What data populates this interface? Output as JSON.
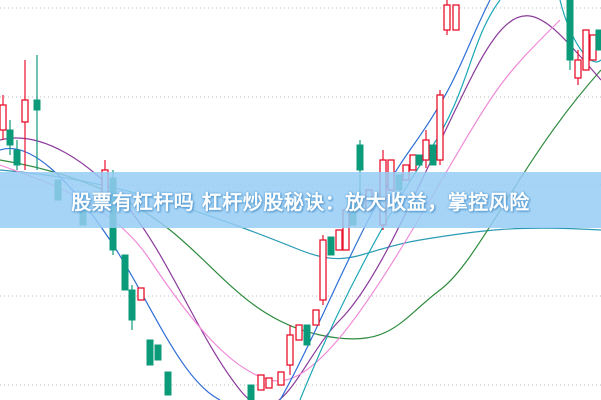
{
  "banner": {
    "title": "股票有杠杆吗 杠杆炒股秘诀：放大收益，掌控风险"
  }
}
